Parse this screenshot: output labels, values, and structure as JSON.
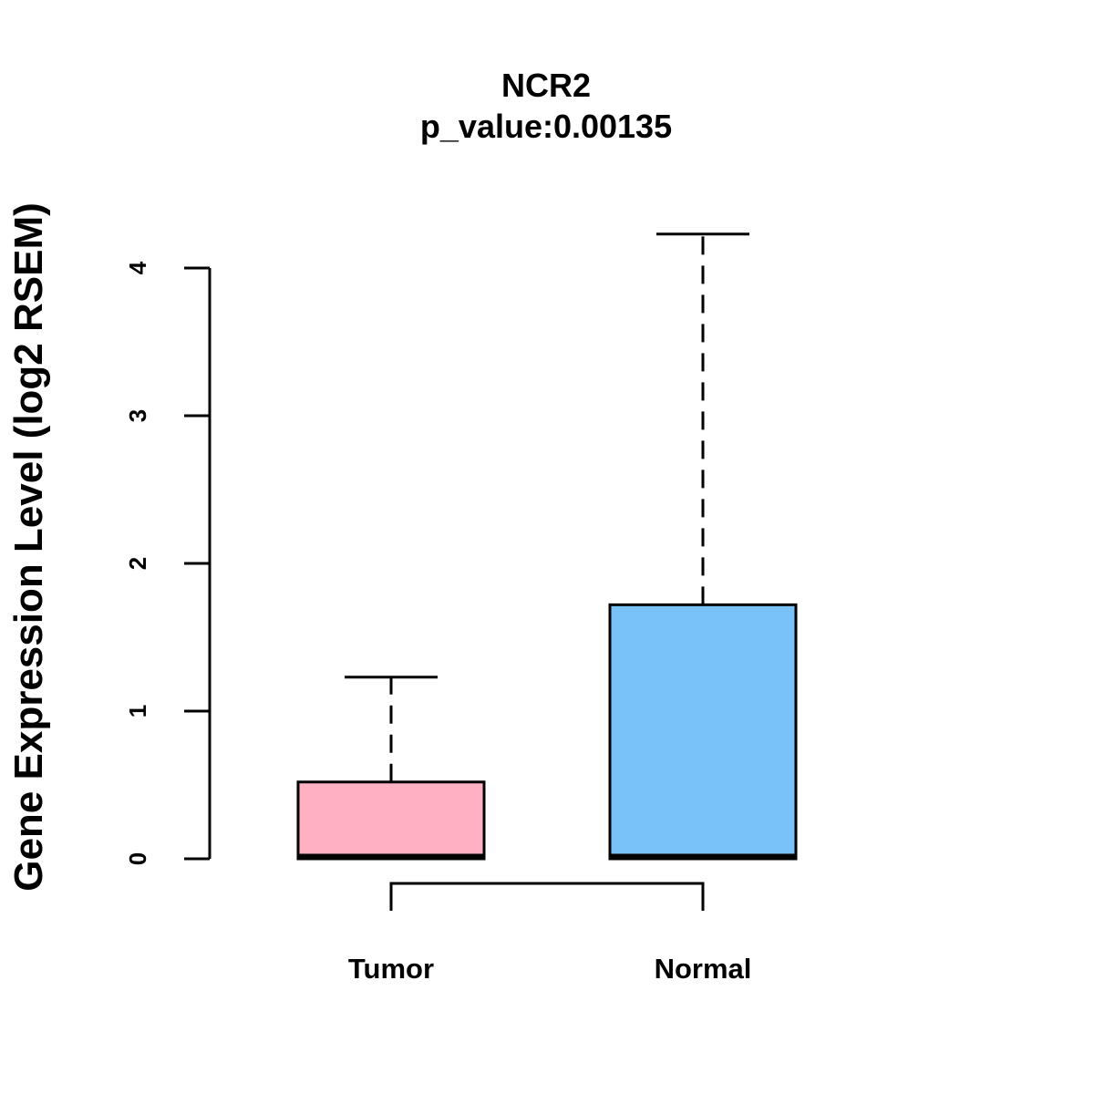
{
  "chart_data": {
    "type": "boxplot",
    "title": "NCR2",
    "subtitle": "p_value:0.00135",
    "xlabel": "",
    "ylabel": "Gene Expression Level (log2 RSEM)",
    "ylim": [
      0,
      4.2
    ],
    "yticks": [
      "0",
      "1",
      "2",
      "3",
      "4"
    ],
    "categories": [
      "Tumor",
      "Normal"
    ],
    "series": [
      {
        "name": "Tumor",
        "color": "#FFB1C3",
        "min": 0,
        "q1": 0,
        "median": 0,
        "q3": 0.52,
        "max": 1.23
      },
      {
        "name": "Normal",
        "color": "#78C1F9",
        "min": 0,
        "q1": 0,
        "median": 0,
        "q3": 1.72,
        "max": 4.23
      }
    ],
    "comparison_bracket": [
      "Tumor",
      "Normal"
    ]
  }
}
